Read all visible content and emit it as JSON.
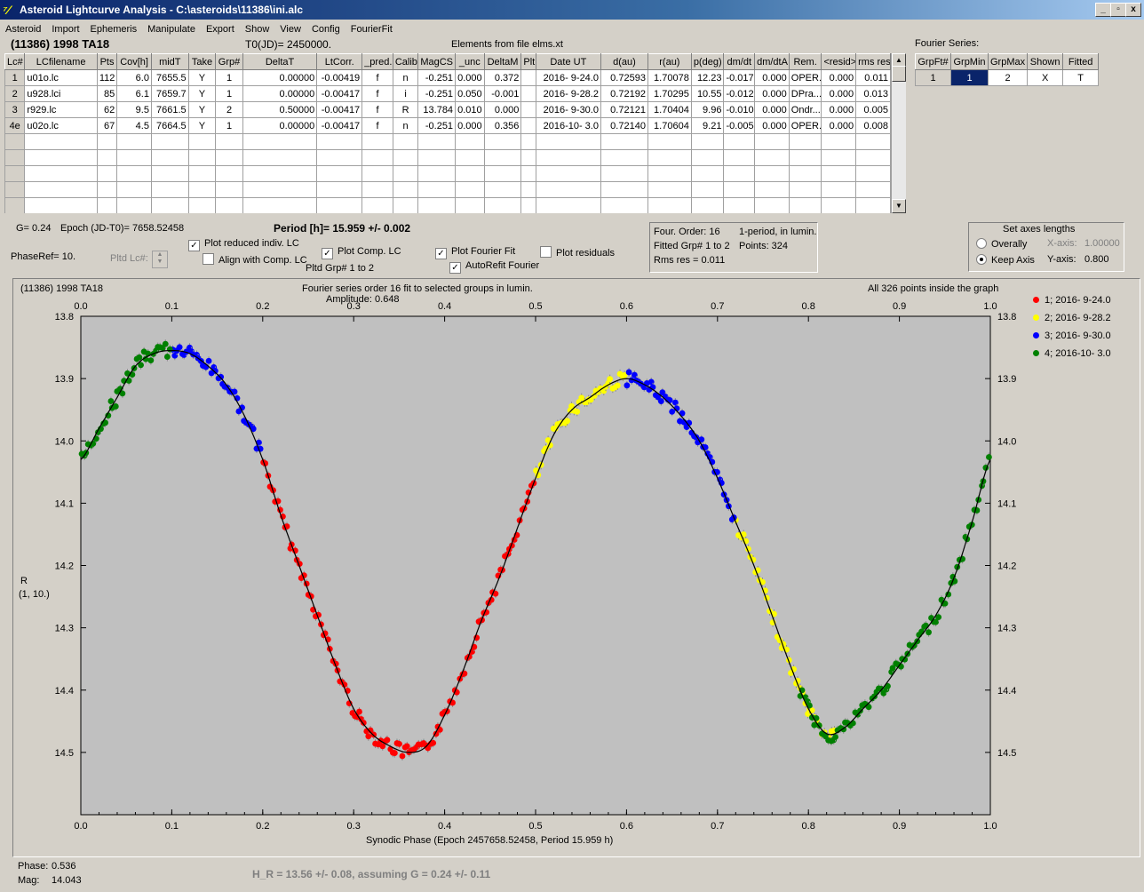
{
  "window": {
    "title": "Asteroid Lightcurve Analysis - C:\\asteroids\\11386\\ini.alc",
    "controls": [
      "_",
      "▫",
      "x"
    ]
  },
  "menu": [
    "Asteroid",
    "Import",
    "Ephemeris",
    "Manipulate",
    "Export",
    "Show",
    "View",
    "Config",
    "FourierFit"
  ],
  "header": {
    "object": "(11386) 1998 TA18",
    "t0": "T0(JD)= 2450000.",
    "elements": "Elements from file elms.xt"
  },
  "lc_table": {
    "columns": [
      "Lc#",
      "LCfilename",
      "Pts",
      "Cov[h]",
      "midT",
      "Take",
      "Grp#",
      "DeltaT",
      "LtCorr.",
      "_pred.",
      "Calib.",
      "MagCS",
      "_unc",
      "DeltaM",
      "Plt",
      "Date UT",
      "d(au)",
      "r(au)",
      "p(deg)",
      "dm/dt",
      "dm/dtA",
      "Rem.",
      "<resid>",
      "rms res"
    ],
    "rows": [
      [
        "1",
        "u01o.lc",
        "112",
        "6.0",
        "7655.5",
        "Y",
        "1",
        "0.00000",
        "-0.00419",
        "f",
        "n",
        "-0.251",
        "0.000",
        "0.372",
        "",
        "2016- 9-24.0",
        "0.72593",
        "1.70078",
        "12.23",
        "-0.017",
        "0.000",
        "OPER.",
        "0.000",
        "0.011"
      ],
      [
        "2",
        "u928.lci",
        "85",
        "6.1",
        "7659.7",
        "Y",
        "1",
        "0.00000",
        "-0.00417",
        "f",
        "i",
        "-0.251",
        "0.050",
        "-0.001",
        "",
        "2016- 9-28.2",
        "0.72192",
        "1.70295",
        "10.55",
        "-0.012",
        "0.000",
        "DPra...",
        "0.000",
        "0.013"
      ],
      [
        "3",
        "r929.lc",
        "62",
        "9.5",
        "7661.5",
        "Y",
        "2",
        "0.50000",
        "-0.00417",
        "f",
        "R",
        "13.784",
        "0.010",
        "0.000",
        "",
        "2016- 9-30.0",
        "0.72121",
        "1.70404",
        "9.96",
        "-0.010",
        "0.000",
        "Ondr...",
        "0.000",
        "0.005"
      ],
      [
        "4e",
        "u02o.lc",
        "67",
        "4.5",
        "7664.5",
        "Y",
        "1",
        "0.00000",
        "-0.00417",
        "f",
        "n",
        "-0.251",
        "0.000",
        "0.356",
        "",
        "2016-10- 3.0",
        "0.72140",
        "1.70604",
        "9.21",
        "-0.005",
        "0.000",
        "OPER.",
        "0.000",
        "0.008"
      ]
    ]
  },
  "fourier_series": {
    "label": "Fourier Series:",
    "columns": [
      "GrpFt#",
      "GrpMin",
      "GrpMax",
      "Shown",
      "Fitted"
    ],
    "row": [
      "1",
      "1",
      "2",
      "X",
      "T"
    ]
  },
  "params": {
    "g": "G= 0.24",
    "epoch": "Epoch (JD-T0)= 7658.52458",
    "period": "Period [h]= 15.959 +/- 0.002",
    "phaseref": "PhaseRef= 10.",
    "pltd_lc": "Pltd Lc#:",
    "pltd_grp": "Pltd Grp#  1   to   2"
  },
  "checkboxes": [
    {
      "label": "Plot reduced indiv. LC",
      "checked": true
    },
    {
      "label": "Align with Comp. LC",
      "checked": false
    },
    {
      "label": "Plot Comp. LC",
      "checked": true
    },
    {
      "label": "Plot Fourier Fit",
      "checked": true
    },
    {
      "label": "AutoRefit Fourier",
      "checked": true
    },
    {
      "label": "Plot residuals",
      "checked": false
    }
  ],
  "fit_info": {
    "order": "Four. Order: 16",
    "mode": "1-period, in lumin.",
    "fitted": "Fitted Grp# 1 to 2",
    "points": "Points: 324",
    "rms": "Rms res     = 0.011"
  },
  "axes_box": {
    "title": "Set axes lengths",
    "overally": "Overally",
    "keep": "Keep Axis",
    "x_label": "X-axis:",
    "x_val": "1.00000",
    "y_label": "Y-axis:",
    "y_val": "0.800"
  },
  "plot": {
    "title_left": "(11386) 1998 TA18",
    "title_center": "Fourier series order 16 fit to selected groups in lumin.",
    "amplitude": "Amplitude: 0.648",
    "title_right": "All 326 points inside the graph",
    "xlabel": "Synodic Phase (Epoch 2457658.52458, Period 15.959 h)",
    "ylabel1": "R",
    "ylabel2": "(1, 10.)"
  },
  "chart_data": {
    "type": "scatter",
    "xlim": [
      0,
      1.0
    ],
    "ylim": [
      13.8,
      14.6
    ],
    "y_inverted": true,
    "x_ticks": [
      "0.0",
      "0.1",
      "0.2",
      "0.3",
      "0.4",
      "0.5",
      "0.6",
      "0.7",
      "0.8",
      "0.9",
      "1.0"
    ],
    "y_ticks": [
      "13.8",
      "13.9",
      "14.0",
      "14.1",
      "14.2",
      "14.3",
      "14.4",
      "14.5"
    ],
    "legend_position": "top-right",
    "series": [
      {
        "name": "1; 2016- 9-24.0",
        "color": "#ff0000",
        "ranges": [
          [
            0.2,
            0.5
          ]
        ]
      },
      {
        "name": "2; 2016- 9-28.2",
        "color": "#ffff00",
        "ranges": [
          [
            0.5,
            0.6
          ],
          [
            0.72,
            0.83
          ]
        ]
      },
      {
        "name": "3; 2016- 9-30.0",
        "color": "#0000ff",
        "ranges": [
          [
            0.1,
            0.2
          ],
          [
            0.6,
            0.72
          ]
        ]
      },
      {
        "name": "4; 2016-10- 3.0",
        "color": "#008000",
        "ranges": [
          [
            0.0,
            0.1
          ],
          [
            0.79,
            1.0
          ]
        ]
      }
    ],
    "fit_curve": [
      [
        0.0,
        14.03
      ],
      [
        0.02,
        13.98
      ],
      [
        0.04,
        13.93
      ],
      [
        0.06,
        13.88
      ],
      [
        0.08,
        13.86
      ],
      [
        0.1,
        13.855
      ],
      [
        0.12,
        13.86
      ],
      [
        0.14,
        13.88
      ],
      [
        0.16,
        13.91
      ],
      [
        0.18,
        13.96
      ],
      [
        0.2,
        14.03
      ],
      [
        0.22,
        14.12
      ],
      [
        0.24,
        14.2
      ],
      [
        0.26,
        14.28
      ],
      [
        0.28,
        14.36
      ],
      [
        0.3,
        14.43
      ],
      [
        0.32,
        14.47
      ],
      [
        0.34,
        14.49
      ],
      [
        0.36,
        14.5
      ],
      [
        0.38,
        14.49
      ],
      [
        0.4,
        14.44
      ],
      [
        0.42,
        14.37
      ],
      [
        0.44,
        14.29
      ],
      [
        0.46,
        14.22
      ],
      [
        0.48,
        14.14
      ],
      [
        0.5,
        14.06
      ],
      [
        0.52,
        13.99
      ],
      [
        0.54,
        13.95
      ],
      [
        0.56,
        13.93
      ],
      [
        0.58,
        13.91
      ],
      [
        0.6,
        13.9
      ],
      [
        0.62,
        13.91
      ],
      [
        0.64,
        13.93
      ],
      [
        0.66,
        13.96
      ],
      [
        0.68,
        14.0
      ],
      [
        0.7,
        14.06
      ],
      [
        0.72,
        14.13
      ],
      [
        0.74,
        14.2
      ],
      [
        0.76,
        14.28
      ],
      [
        0.78,
        14.36
      ],
      [
        0.8,
        14.43
      ],
      [
        0.82,
        14.47
      ],
      [
        0.84,
        14.46
      ],
      [
        0.86,
        14.43
      ],
      [
        0.88,
        14.4
      ],
      [
        0.9,
        14.36
      ],
      [
        0.92,
        14.32
      ],
      [
        0.94,
        14.28
      ],
      [
        0.96,
        14.22
      ],
      [
        0.98,
        14.13
      ],
      [
        1.0,
        14.03
      ]
    ]
  },
  "status": {
    "phase_label": "Phase:",
    "phase": "0.536",
    "mag_label": "Mag:",
    "mag": "14.043",
    "hr": "H_R = 13.56 +/- 0.08, assuming G = 0.24 +/- 0.11"
  }
}
